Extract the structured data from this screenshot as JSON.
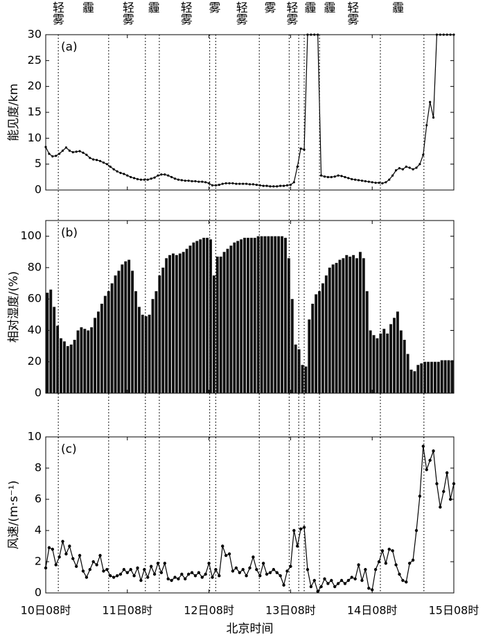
{
  "chart_data": [
    {
      "type": "line",
      "tag": "(a)",
      "y_label": "能见度/km",
      "color": "#000000",
      "xlim": [
        0,
        120
      ],
      "xticks": [
        0,
        24,
        48,
        72,
        96,
        120
      ],
      "ylim": [
        0,
        30
      ],
      "yticks": [
        0,
        5,
        10,
        15,
        20,
        25,
        30
      ],
      "x": [
        0,
        1,
        2,
        3,
        4,
        5,
        6,
        7,
        8,
        9,
        10,
        11,
        12,
        13,
        14,
        15,
        16,
        17,
        18,
        19,
        20,
        21,
        22,
        23,
        24,
        25,
        26,
        27,
        28,
        29,
        30,
        31,
        32,
        33,
        34,
        35,
        36,
        37,
        38,
        39,
        40,
        41,
        42,
        43,
        44,
        45,
        46,
        47,
        48,
        49,
        50,
        51,
        52,
        53,
        54,
        55,
        56,
        57,
        58,
        59,
        60,
        61,
        62,
        63,
        64,
        65,
        66,
        67,
        68,
        69,
        70,
        71,
        72,
        73,
        74,
        75,
        76,
        77,
        78,
        79,
        80,
        81,
        82,
        83,
        84,
        85,
        86,
        87,
        88,
        89,
        90,
        91,
        92,
        93,
        94,
        95,
        96,
        97,
        98,
        99,
        100,
        101,
        102,
        103,
        104,
        105,
        106,
        107,
        108,
        109,
        110,
        111,
        112,
        113,
        114,
        115,
        116,
        117,
        118,
        119,
        120
      ],
      "values": [
        8.3,
        7.0,
        6.5,
        6.6,
        7.0,
        7.6,
        8.2,
        7.6,
        7.3,
        7.4,
        7.5,
        7.2,
        6.8,
        6.2,
        5.9,
        5.8,
        5.6,
        5.3,
        5.0,
        4.5,
        4.0,
        3.6,
        3.3,
        3.1,
        2.8,
        2.5,
        2.3,
        2.1,
        2.0,
        2.0,
        2.0,
        2.2,
        2.4,
        2.8,
        3.0,
        3.0,
        2.8,
        2.5,
        2.2,
        2.0,
        1.9,
        1.8,
        1.8,
        1.7,
        1.7,
        1.6,
        1.6,
        1.5,
        1.3,
        0.9,
        0.9,
        1.0,
        1.2,
        1.3,
        1.3,
        1.3,
        1.2,
        1.2,
        1.2,
        1.2,
        1.1,
        1.1,
        1.0,
        0.9,
        0.8,
        0.8,
        0.7,
        0.7,
        0.7,
        0.8,
        0.8,
        0.9,
        1.0,
        1.5,
        4.5,
        8.0,
        7.8,
        30,
        30,
        30,
        30,
        2.8,
        2.6,
        2.5,
        2.5,
        2.6,
        2.8,
        2.7,
        2.5,
        2.3,
        2.1,
        2.0,
        1.9,
        1.8,
        1.7,
        1.6,
        1.5,
        1.4,
        1.4,
        1.3,
        1.5,
        2.0,
        2.8,
        3.8,
        4.2,
        4.0,
        4.5,
        4.3,
        4.0,
        4.3,
        5.0,
        6.8,
        12.5,
        17,
        14,
        30,
        30,
        30,
        30,
        30,
        30
      ],
      "boundaries": [
        3.7,
        18.5,
        29.3,
        33.4,
        48.2,
        50,
        62.8,
        71.6,
        74.4,
        76,
        80.5,
        98.4,
        111.2
      ],
      "annotations": [
        {
          "text": "轻雾",
          "x": 3.25
        },
        {
          "text": "霾",
          "x": 12
        },
        {
          "text": "轻雾",
          "x": 23.8
        },
        {
          "text": "霾",
          "x": 31.3
        },
        {
          "text": "轻雾",
          "x": 40.9
        },
        {
          "text": "雾",
          "x": 49.2
        },
        {
          "text": "轻雾",
          "x": 57.2
        },
        {
          "text": "雾",
          "x": 65.5
        },
        {
          "text": "轻雾",
          "x": 72
        },
        {
          "text": "霾",
          "x": 77.3
        },
        {
          "text": "霾",
          "x": 83
        },
        {
          "text": "轻雾",
          "x": 89.9
        },
        {
          "text": "霾",
          "x": 103.1
        }
      ]
    },
    {
      "type": "bar",
      "tag": "(b)",
      "y_label": "相对湿度/(%)",
      "color": "#111111",
      "xlim": [
        0,
        120
      ],
      "xticks": [
        0,
        24,
        48,
        72,
        96,
        120
      ],
      "ylim": [
        0,
        110
      ],
      "yticks": [
        0,
        20,
        40,
        60,
        80,
        100
      ],
      "x": [
        0,
        1,
        2,
        3,
        4,
        5,
        6,
        7,
        8,
        9,
        10,
        11,
        12,
        13,
        14,
        15,
        16,
        17,
        18,
        19,
        20,
        21,
        22,
        23,
        24,
        25,
        26,
        27,
        28,
        29,
        30,
        31,
        32,
        33,
        34,
        35,
        36,
        37,
        38,
        39,
        40,
        41,
        42,
        43,
        44,
        45,
        46,
        47,
        48,
        49,
        50,
        51,
        52,
        53,
        54,
        55,
        56,
        57,
        58,
        59,
        60,
        61,
        62,
        63,
        64,
        65,
        66,
        67,
        68,
        69,
        70,
        71,
        72,
        73,
        74,
        75,
        76,
        77,
        78,
        79,
        80,
        81,
        82,
        83,
        84,
        85,
        86,
        87,
        88,
        89,
        90,
        91,
        92,
        93,
        94,
        95,
        96,
        97,
        98,
        99,
        100,
        101,
        102,
        103,
        104,
        105,
        106,
        107,
        108,
        109,
        110,
        111,
        112,
        113,
        114,
        115,
        116,
        117,
        118,
        119
      ],
      "values": [
        64,
        66,
        55,
        43,
        35,
        33,
        30,
        31,
        34,
        40,
        42,
        41,
        40,
        42,
        48,
        52,
        57,
        62,
        65,
        70,
        75,
        78,
        82,
        84,
        85,
        78,
        65,
        55,
        50,
        49,
        50,
        60,
        65,
        75,
        80,
        86,
        88,
        89,
        88,
        89,
        90,
        92,
        94,
        96,
        97,
        98,
        99,
        99,
        98,
        75,
        87,
        87,
        90,
        92,
        94,
        96,
        97,
        98,
        99,
        99,
        99,
        99,
        100,
        100,
        100,
        100,
        100,
        100,
        100,
        100,
        99,
        86,
        60,
        31,
        28,
        18,
        17,
        47,
        57,
        63,
        65,
        70,
        75,
        80,
        82,
        83,
        85,
        86,
        88,
        87,
        88,
        86,
        90,
        86,
        65,
        40,
        37,
        35,
        38,
        41,
        38,
        44,
        48,
        52,
        40,
        34,
        25,
        15,
        14,
        18,
        19,
        20,
        20,
        20,
        20,
        20,
        21,
        21,
        21,
        21
      ]
    },
    {
      "type": "line",
      "tag": "(c)",
      "y_label": "风速/(m·s⁻¹)",
      "x_label": "北京时间",
      "color": "#000000",
      "xlim": [
        0,
        120
      ],
      "xticks": [
        {
          "value": 0,
          "label": "10日08时"
        },
        {
          "value": 24,
          "label": "11日08时"
        },
        {
          "value": 48,
          "label": "12日08时"
        },
        {
          "value": 72,
          "label": "13日08时"
        },
        {
          "value": 96,
          "label": "14日08时"
        },
        {
          "value": 120,
          "label": "15日08时"
        }
      ],
      "ylim": [
        0,
        10
      ],
      "yticks": [
        0,
        2,
        4,
        6,
        8,
        10
      ],
      "x": [
        0,
        1,
        2,
        3,
        4,
        5,
        6,
        7,
        8,
        9,
        10,
        11,
        12,
        13,
        14,
        15,
        16,
        17,
        18,
        19,
        20,
        21,
        22,
        23,
        24,
        25,
        26,
        27,
        28,
        29,
        30,
        31,
        32,
        33,
        34,
        35,
        36,
        37,
        38,
        39,
        40,
        41,
        42,
        43,
        44,
        45,
        46,
        47,
        48,
        49,
        50,
        51,
        52,
        53,
        54,
        55,
        56,
        57,
        58,
        59,
        60,
        61,
        62,
        63,
        64,
        65,
        66,
        67,
        68,
        69,
        70,
        71,
        72,
        73,
        74,
        75,
        76,
        77,
        78,
        79,
        80,
        81,
        82,
        83,
        84,
        85,
        86,
        87,
        88,
        89,
        90,
        91,
        92,
        93,
        94,
        95,
        96,
        97,
        98,
        99,
        100,
        101,
        102,
        103,
        104,
        105,
        106,
        107,
        108,
        109,
        110,
        111,
        112,
        113,
        114,
        115,
        116,
        117,
        118,
        119,
        120
      ],
      "values": [
        1.6,
        2.9,
        2.8,
        1.8,
        2.3,
        3.3,
        2.5,
        3.0,
        2.2,
        1.7,
        2.4,
        1.4,
        1.0,
        1.5,
        2.0,
        1.8,
        2.4,
        1.4,
        1.5,
        1.1,
        1.0,
        1.1,
        1.2,
        1.5,
        1.3,
        1.5,
        1.1,
        1.6,
        0.8,
        1.5,
        1.0,
        1.7,
        1.2,
        1.9,
        1.3,
        1.9,
        0.9,
        0.8,
        1.0,
        0.9,
        1.2,
        0.9,
        1.2,
        1.3,
        1.1,
        1.3,
        1.0,
        1.2,
        1.9,
        1.0,
        1.5,
        1.1,
        3.0,
        2.4,
        2.5,
        1.4,
        1.6,
        1.3,
        1.5,
        1.1,
        1.6,
        2.3,
        1.5,
        1.1,
        1.9,
        1.2,
        1.3,
        1.5,
        1.3,
        1.1,
        0.5,
        1.4,
        1.7,
        4.0,
        3.0,
        4.1,
        4.2,
        1.5,
        0.4,
        0.8,
        0.1,
        0.4,
        0.9,
        0.6,
        0.8,
        0.4,
        0.6,
        0.8,
        0.6,
        0.8,
        1.0,
        0.9,
        1.8,
        0.8,
        1.5,
        0.3,
        0.2,
        1.5,
        2.0,
        2.7,
        1.9,
        2.8,
        2.7,
        1.8,
        1.2,
        0.8,
        0.7,
        1.9,
        2.1,
        4.0,
        6.2,
        9.4,
        7.9,
        8.5,
        9.1,
        7.0,
        5.5,
        6.5,
        7.7,
        6.0,
        7.0
      ]
    }
  ]
}
